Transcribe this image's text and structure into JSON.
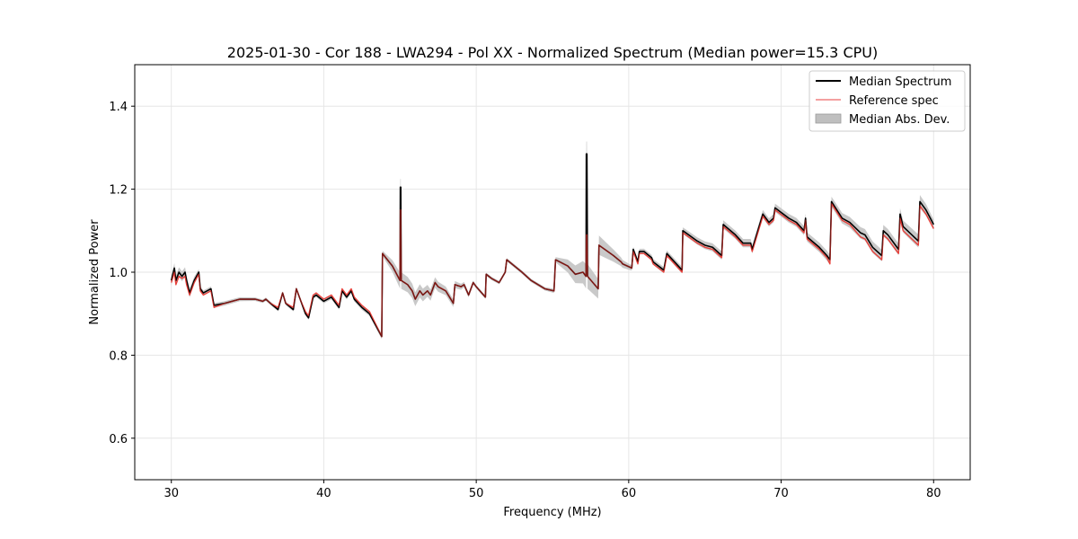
{
  "chart_data": {
    "type": "line",
    "title": "2025-01-30 - Cor 188 - LWA294 - Pol XX - Normalized Spectrum (Median power=15.3 CPU)",
    "xlabel": "Frequency (MHz)",
    "ylabel": "Normalized Power",
    "xlim": [
      27.6,
      82.4
    ],
    "ylim": [
      0.5,
      1.5
    ],
    "xticks": [
      30,
      40,
      50,
      60,
      70,
      80
    ],
    "yticks": [
      0.6,
      0.8,
      1.0,
      1.2,
      1.4
    ],
    "xtick_labels": [
      "30",
      "40",
      "50",
      "60",
      "70",
      "80"
    ],
    "ytick_labels": [
      "0.6",
      "0.8",
      "1.0",
      "1.2",
      "1.4"
    ],
    "grid": true,
    "legend_position": "top-right",
    "colors": {
      "median": "#000000",
      "reference": "#e8312a",
      "reference_legend": "#f08080",
      "mad_fill": "#bfbfbf",
      "grid": "#e6e6e6"
    },
    "series": [
      {
        "name": "Median Spectrum",
        "x": [
          30.0,
          30.2,
          30.3,
          30.5,
          30.7,
          30.9,
          31.0,
          31.2,
          31.5,
          31.8,
          31.9,
          32.1,
          32.6,
          32.8,
          33.5,
          34.5,
          35.5,
          36.0,
          36.2,
          36.5,
          37.0,
          37.3,
          37.5,
          38.0,
          38.2,
          38.5,
          38.8,
          39.0,
          39.3,
          39.5,
          40.0,
          40.5,
          41.0,
          41.2,
          41.5,
          41.8,
          42.0,
          42.5,
          43.0,
          43.8,
          43.85,
          44.5,
          45.0,
          45.02,
          45.05,
          45.08,
          45.5,
          45.8,
          46.0,
          46.3,
          46.5,
          46.8,
          47.0,
          47.3,
          47.5,
          48.0,
          48.5,
          48.6,
          49.0,
          49.2,
          49.5,
          49.8,
          50.0,
          50.6,
          50.65,
          51.0,
          51.5,
          51.9,
          52.0,
          53.0,
          53.6,
          54.5,
          55.1,
          55.2,
          56.0,
          56.5,
          57.0,
          57.2,
          57.22,
          57.26,
          57.3,
          58.0,
          58.05,
          59.0,
          59.5,
          59.6,
          60.2,
          60.3,
          60.6,
          60.7,
          61.0,
          61.5,
          61.6,
          62.3,
          62.5,
          63.5,
          63.55,
          64.5,
          65.0,
          65.5,
          66.1,
          66.2,
          67.0,
          67.5,
          68.0,
          68.1,
          68.8,
          69.2,
          69.5,
          69.6,
          70.5,
          71.0,
          71.5,
          71.6,
          71.7,
          72.5,
          73.0,
          73.2,
          73.3,
          74.0,
          74.5,
          75.2,
          75.5,
          76.0,
          76.6,
          76.7,
          77.0,
          77.7,
          77.8,
          78.0,
          79.0,
          79.1,
          79.5,
          80.0
        ],
        "y": [
          0.98,
          1.01,
          0.98,
          1.0,
          0.99,
          1.0,
          0.98,
          0.95,
          0.98,
          1.0,
          0.96,
          0.95,
          0.96,
          0.92,
          0.925,
          0.935,
          0.935,
          0.93,
          0.935,
          0.925,
          0.91,
          0.95,
          0.925,
          0.91,
          0.96,
          0.93,
          0.9,
          0.89,
          0.94,
          0.945,
          0.93,
          0.94,
          0.915,
          0.955,
          0.94,
          0.955,
          0.935,
          0.915,
          0.9,
          0.845,
          1.045,
          1.015,
          0.98,
          1.205,
          1.205,
          0.98,
          0.97,
          0.955,
          0.935,
          0.955,
          0.945,
          0.955,
          0.945,
          0.975,
          0.965,
          0.955,
          0.925,
          0.97,
          0.965,
          0.97,
          0.945,
          0.975,
          0.965,
          0.94,
          0.995,
          0.985,
          0.975,
          1.0,
          1.03,
          1.0,
          0.98,
          0.96,
          0.955,
          1.03,
          1.015,
          0.995,
          1.0,
          0.99,
          1.285,
          1.285,
          0.99,
          0.96,
          1.065,
          1.04,
          1.025,
          1.02,
          1.01,
          1.055,
          1.025,
          1.05,
          1.05,
          1.035,
          1.025,
          1.005,
          1.045,
          1.005,
          1.1,
          1.075,
          1.065,
          1.06,
          1.04,
          1.115,
          1.09,
          1.07,
          1.07,
          1.055,
          1.14,
          1.12,
          1.13,
          1.155,
          1.13,
          1.12,
          1.1,
          1.13,
          1.085,
          1.06,
          1.04,
          1.03,
          1.17,
          1.13,
          1.12,
          1.095,
          1.09,
          1.06,
          1.04,
          1.1,
          1.09,
          1.055,
          1.14,
          1.11,
          1.075,
          1.17,
          1.15,
          1.115
        ]
      },
      {
        "name": "Reference spec",
        "x": [
          30.0,
          30.2,
          30.3,
          30.5,
          30.7,
          30.9,
          31.0,
          31.2,
          31.5,
          31.8,
          31.9,
          32.1,
          32.6,
          32.8,
          33.5,
          34.5,
          35.5,
          36.0,
          36.2,
          36.5,
          37.0,
          37.3,
          37.5,
          38.0,
          38.2,
          38.5,
          38.8,
          39.0,
          39.3,
          39.5,
          40.0,
          40.5,
          41.0,
          41.2,
          41.5,
          41.8,
          42.0,
          42.5,
          43.0,
          43.8,
          43.85,
          44.5,
          45.0,
          45.02,
          45.05,
          45.08,
          45.5,
          45.8,
          46.0,
          46.3,
          46.5,
          46.8,
          47.0,
          47.3,
          47.5,
          48.0,
          48.5,
          48.6,
          49.0,
          49.2,
          49.5,
          49.8,
          50.0,
          50.6,
          50.65,
          51.0,
          51.5,
          51.9,
          52.0,
          53.0,
          53.6,
          54.5,
          55.1,
          55.2,
          56.0,
          56.5,
          57.0,
          57.2,
          57.22,
          57.26,
          57.3,
          58.0,
          58.05,
          59.0,
          59.5,
          59.6,
          60.2,
          60.3,
          60.6,
          60.7,
          61.0,
          61.5,
          61.6,
          62.3,
          62.5,
          63.5,
          63.55,
          64.5,
          65.0,
          65.5,
          66.1,
          66.2,
          67.0,
          67.5,
          68.0,
          68.1,
          68.8,
          69.2,
          69.5,
          69.6,
          70.5,
          71.0,
          71.5,
          71.6,
          71.7,
          72.5,
          73.0,
          73.2,
          73.3,
          74.0,
          74.5,
          75.2,
          75.5,
          76.0,
          76.6,
          76.7,
          77.0,
          77.7,
          77.8,
          78.0,
          79.0,
          79.1,
          79.5,
          80.0
        ],
        "y": [
          0.975,
          1.0,
          0.97,
          0.99,
          0.985,
          0.99,
          0.97,
          0.945,
          0.975,
          0.995,
          0.955,
          0.945,
          0.955,
          0.915,
          0.925,
          0.935,
          0.935,
          0.93,
          0.935,
          0.925,
          0.915,
          0.95,
          0.925,
          0.915,
          0.96,
          0.93,
          0.905,
          0.895,
          0.945,
          0.95,
          0.935,
          0.945,
          0.92,
          0.96,
          0.945,
          0.96,
          0.94,
          0.92,
          0.905,
          0.845,
          1.045,
          1.015,
          0.98,
          1.15,
          1.15,
          0.98,
          0.97,
          0.955,
          0.935,
          0.955,
          0.945,
          0.955,
          0.945,
          0.975,
          0.965,
          0.955,
          0.925,
          0.97,
          0.965,
          0.97,
          0.945,
          0.975,
          0.965,
          0.94,
          0.995,
          0.985,
          0.975,
          1.0,
          1.03,
          1.0,
          0.98,
          0.96,
          0.955,
          1.03,
          1.015,
          0.995,
          1.0,
          0.99,
          1.09,
          1.09,
          0.99,
          0.96,
          1.065,
          1.04,
          1.025,
          1.02,
          1.01,
          1.05,
          1.02,
          1.045,
          1.045,
          1.03,
          1.02,
          1.0,
          1.04,
          1.0,
          1.095,
          1.07,
          1.06,
          1.055,
          1.035,
          1.11,
          1.085,
          1.065,
          1.065,
          1.05,
          1.135,
          1.115,
          1.125,
          1.15,
          1.125,
          1.115,
          1.095,
          1.125,
          1.08,
          1.055,
          1.035,
          1.02,
          1.165,
          1.125,
          1.115,
          1.085,
          1.08,
          1.05,
          1.03,
          1.09,
          1.08,
          1.045,
          1.13,
          1.1,
          1.065,
          1.16,
          1.14,
          1.105
        ]
      },
      {
        "name": "Median Abs. Dev.",
        "kind": "band",
        "x": [
          30.0,
          31.0,
          32.0,
          36.0,
          43.8,
          45.05,
          50.0,
          55.0,
          57.26,
          60.0,
          63.5,
          66.1,
          68.0,
          69.6,
          73.3,
          75.5,
          77.7,
          79.1,
          80.0
        ],
        "halfwidth": [
          0.012,
          0.012,
          0.006,
          0.004,
          0.006,
          0.02,
          0.004,
          0.004,
          0.03,
          0.006,
          0.008,
          0.01,
          0.01,
          0.01,
          0.012,
          0.014,
          0.014,
          0.016,
          0.012
        ]
      }
    ]
  },
  "legend": {
    "entries": [
      "Median Spectrum",
      "Reference spec",
      "Median Abs. Dev."
    ]
  }
}
